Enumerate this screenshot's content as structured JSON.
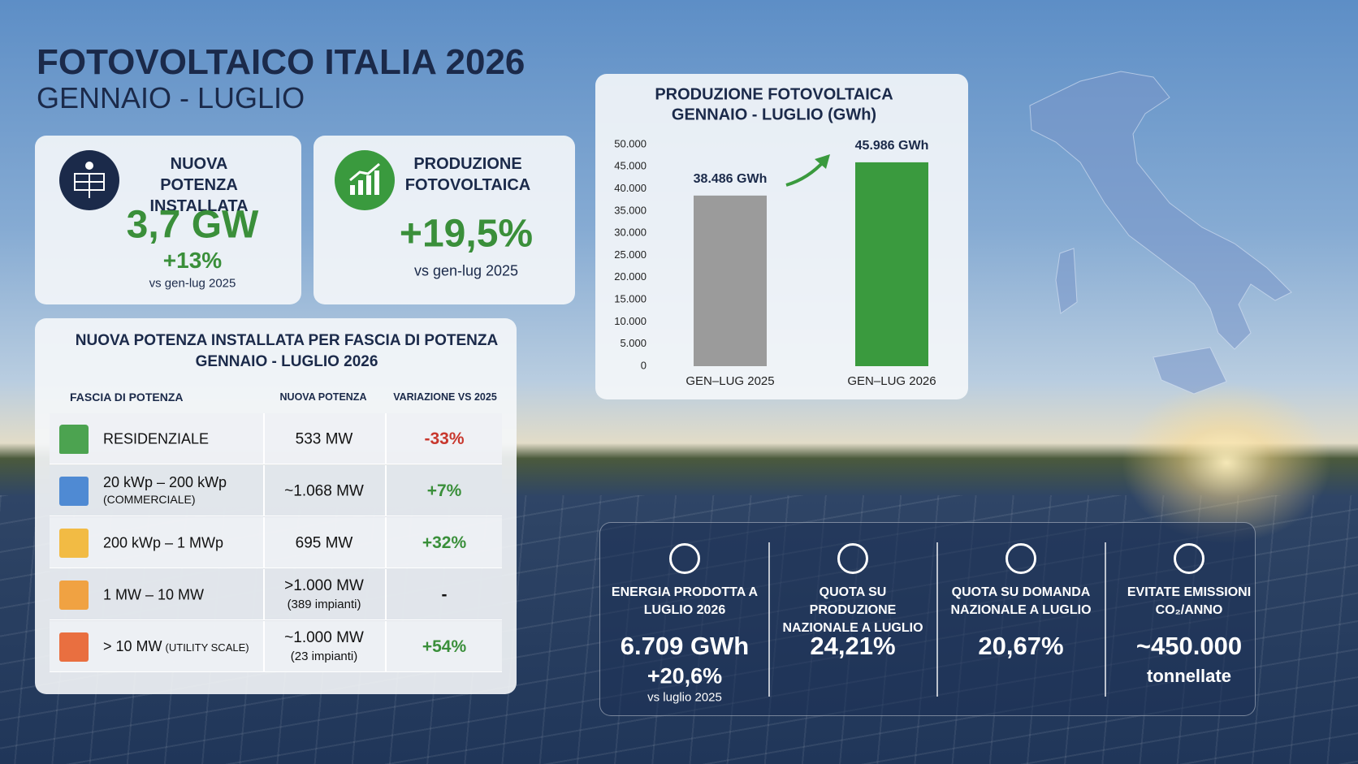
{
  "header": {
    "title": "FOTOVOLTAICO ITALIA 2026",
    "subtitle": "GENNAIO - LUGLIO"
  },
  "kpis": [
    {
      "label": "NUOVA POTENZA INSTALLATA",
      "value": "3,7 GW",
      "change": "+13%",
      "note": "vs gen-lug 2025"
    },
    {
      "label": "PRODUZIONE FOTOVOLTAICA",
      "value": "+19,5%",
      "note": "vs gen-lug 2025"
    }
  ],
  "table": {
    "title": "NUOVA POTENZA INSTALLATA PER FASCIA DI POTENZA",
    "subtitle": "GENNAIO - LUGLIO 2026",
    "columns": [
      "FASCIA DI POTENZA",
      "NUOVA POTENZA",
      "VARIAZIONE VS 2025"
    ],
    "rows": [
      {
        "band": "RESIDENZIALE",
        "power": "533 MW",
        "change": "-33%"
      },
      {
        "band": "20 kWp – 200 kWp",
        "band_note": "(COMMERCIALE)",
        "power": "~1.068 MW",
        "change": "+7%"
      },
      {
        "band": "200 kWp – 1 MWp",
        "power": "695 MW",
        "change": "+32%"
      },
      {
        "band": "1 MW – 10 MW",
        "power": ">1.000 MW",
        "power_note": "(389 impianti)",
        "change": "-"
      },
      {
        "band": "> 10 MW",
        "band_note": "(UTILITY SCALE)",
        "power": "~1.000 MW",
        "power_note": "(23 impianti)",
        "change": "+54%"
      }
    ]
  },
  "chart_data": {
    "type": "bar",
    "title": "PRODUZIONE FOTOVOLTAICA",
    "subtitle": "GENNAIO - LUGLIO (GWh)",
    "categories": [
      "GEN–LUG 2025",
      "GEN–LUG 2026"
    ],
    "values": [
      38486,
      45986
    ],
    "value_labels": [
      "38.486 GWh",
      "45.986 GWh"
    ],
    "colors": [
      "#9b9b9b",
      "#3a9a3e"
    ],
    "ylim": [
      0,
      50000
    ],
    "yticks": [
      0,
      {
        "value": 5000,
        "label": "5.000"
      },
      {
        "value": 10000,
        "label": "10.000"
      },
      {
        "value": 15000,
        "label": "15.000"
      },
      {
        "value": 20000,
        "label": "20.000"
      },
      {
        "value": 25000,
        "label": "25.000"
      },
      {
        "value": 30000,
        "label": "30.000"
      },
      {
        "value": 35000,
        "label": "35.000"
      },
      {
        "value": 40000,
        "label": "40.000"
      },
      {
        "value": 45000,
        "label": "45.000"
      },
      {
        "value": 50000,
        "label": "50.000"
      }
    ],
    "grid": false
  },
  "stats": [
    {
      "label": "ENERGIA PRODOTTA A LUGLIO 2026",
      "value": "6.709 GWh",
      "change": "+20,6%",
      "note": "vs luglio 2025"
    },
    {
      "label": "QUOTA SU PRODUZIONE NAZIONALE A LUGLIO",
      "value": "24,21%"
    },
    {
      "label": "QUOTA SU DOMANDA NAZIONALE A LUGLIO",
      "value": "20,67%"
    },
    {
      "label": "EVITATE EMISSIONI CO₂/ANNO",
      "value": "~450.000",
      "note": "tonnellate"
    }
  ]
}
